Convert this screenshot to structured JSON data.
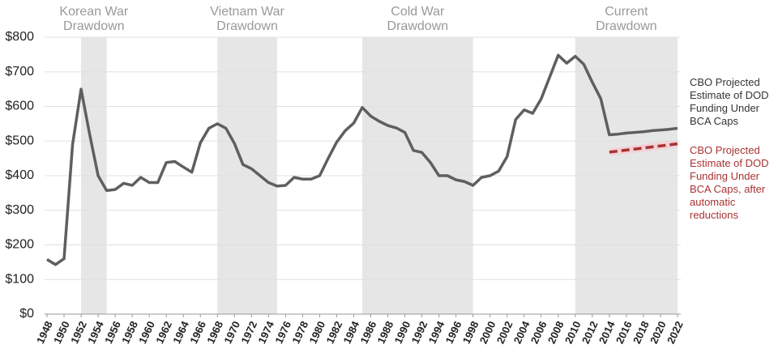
{
  "chart_data": {
    "type": "line",
    "x": [
      1948,
      1949,
      1950,
      1951,
      1952,
      1953,
      1954,
      1955,
      1956,
      1957,
      1958,
      1959,
      1960,
      1961,
      1962,
      1963,
      1964,
      1965,
      1966,
      1967,
      1968,
      1969,
      1970,
      1971,
      1972,
      1973,
      1974,
      1975,
      1976,
      1977,
      1978,
      1979,
      1980,
      1981,
      1982,
      1983,
      1984,
      1985,
      1986,
      1987,
      1988,
      1989,
      1990,
      1991,
      1992,
      1993,
      1994,
      1995,
      1996,
      1997,
      1998,
      1999,
      2000,
      2001,
      2002,
      2003,
      2004,
      2005,
      2006,
      2007,
      2008,
      2009,
      2010,
      2011,
      2012,
      2013,
      2014,
      2015,
      2016,
      2017,
      2018,
      2019,
      2020,
      2021,
      2022
    ],
    "series": [
      {
        "name": "CBO Projected Estimate of DOD Funding Under BCA Caps",
        "color": "#5f5f5f",
        "dashed": false,
        "values": [
          158,
          143,
          160,
          490,
          650,
          520,
          400,
          357,
          360,
          378,
          372,
          395,
          380,
          380,
          438,
          441,
          425,
          410,
          495,
          537,
          550,
          537,
          493,
          432,
          420,
          400,
          380,
          370,
          372,
          395,
          390,
          390,
          400,
          450,
          497,
          530,
          552,
          597,
          572,
          557,
          545,
          538,
          525,
          473,
          467,
          438,
          400,
          400,
          388,
          383,
          372,
          395,
          400,
          413,
          455,
          562,
          590,
          580,
          622,
          685,
          748,
          725,
          745,
          722,
          670,
          622,
          518,
          520,
          523,
          525,
          527,
          530,
          532,
          534,
          537
        ]
      },
      {
        "name": "CBO Projected Estimate of DOD Funding Under BCA Caps, after automatic reductions",
        "color": "#a83232",
        "dashed": true,
        "values": [
          null,
          null,
          null,
          null,
          null,
          null,
          null,
          null,
          null,
          null,
          null,
          null,
          null,
          null,
          null,
          null,
          null,
          null,
          null,
          null,
          null,
          null,
          null,
          null,
          null,
          null,
          null,
          null,
          null,
          null,
          null,
          null,
          null,
          null,
          null,
          null,
          null,
          null,
          null,
          null,
          null,
          null,
          null,
          null,
          null,
          null,
          null,
          null,
          null,
          null,
          null,
          null,
          null,
          null,
          null,
          null,
          null,
          null,
          null,
          null,
          null,
          null,
          null,
          null,
          null,
          null,
          468,
          471,
          474,
          477,
          480,
          483,
          486,
          489,
          492
        ]
      }
    ],
    "drawdowns": [
      {
        "label": [
          "Korean War",
          "Drawdown"
        ],
        "start": 1952,
        "end": 1955
      },
      {
        "label": [
          "Vietnam War",
          "Drawdown"
        ],
        "start": 1968,
        "end": 1975
      },
      {
        "label": [
          "Cold War",
          "Drawdown"
        ],
        "start": 1985,
        "end": 1998
      },
      {
        "label": [
          "Current",
          "Drawdown"
        ],
        "start": 2010,
        "end": 2022
      }
    ],
    "xlim": [
      1948,
      2022
    ],
    "xticks": [
      1948,
      1950,
      1952,
      1954,
      1956,
      1958,
      1960,
      1962,
      1964,
      1966,
      1968,
      1970,
      1972,
      1974,
      1976,
      1978,
      1980,
      1982,
      1984,
      1986,
      1988,
      1990,
      1992,
      1994,
      1996,
      1998,
      2000,
      2002,
      2004,
      2006,
      2008,
      2010,
      2012,
      2014,
      2016,
      2018,
      2020,
      2022
    ],
    "ylim": [
      0,
      800
    ],
    "yticks": [
      {
        "value": 0,
        "label": "$0"
      },
      {
        "value": 100,
        "label": "$100"
      },
      {
        "value": 200,
        "label": "$200"
      },
      {
        "value": 300,
        "label": "$300"
      },
      {
        "value": 400,
        "label": "$400"
      },
      {
        "value": 500,
        "label": "$500"
      },
      {
        "value": 600,
        "label": "$600"
      },
      {
        "value": 700,
        "label": "$700"
      },
      {
        "value": 800,
        "label": "$800"
      }
    ],
    "grid": true
  }
}
